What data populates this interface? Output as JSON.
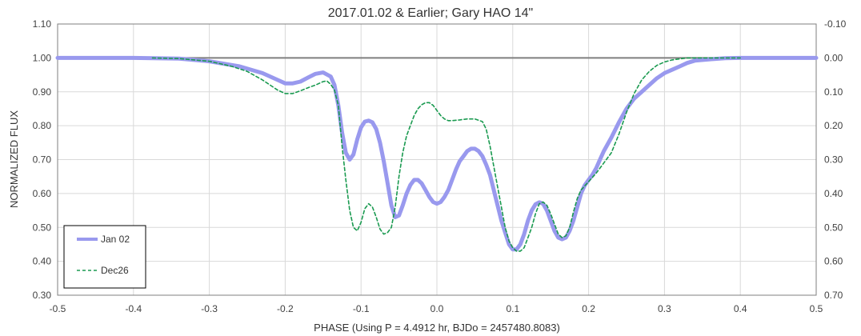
{
  "chart_data": {
    "type": "line",
    "title": "2017.01.02 & Earlier; Gary HAO 14\"",
    "xlabel": "PHASE (Using P = 4.4912 hr, BJDo = 2457480.8083)",
    "ylabel": "NORMALIZED FLUX",
    "xlim": [
      -0.5,
      0.5
    ],
    "ylim": [
      0.3,
      1.1
    ],
    "y2lim": [
      -0.1,
      0.7
    ],
    "y2_reversed": true,
    "x_ticks": [
      "-0.5",
      "-0.4",
      "-0.3",
      "-0.2",
      "-0.1",
      "0.0",
      "0.1",
      "0.2",
      "0.3",
      "0.4",
      "0.5"
    ],
    "y_ticks": [
      "0.30",
      "0.40",
      "0.50",
      "0.60",
      "0.70",
      "0.80",
      "0.90",
      "1.00",
      "1.10"
    ],
    "y2_ticks": [
      "0.70",
      "0.60",
      "0.50",
      "0.40",
      "0.30",
      "0.20",
      "0.10",
      "0.00",
      "-0.10"
    ],
    "reference_line_y": 1.0,
    "grid": true,
    "legend_position": "bottom-left",
    "series": [
      {
        "name": "Jan 02",
        "style": "solid-thick",
        "color": "#9999ee",
        "x": [
          -0.5,
          -0.4,
          -0.34,
          -0.3,
          -0.26,
          -0.23,
          -0.21,
          -0.2,
          -0.19,
          -0.18,
          -0.17,
          -0.16,
          -0.15,
          -0.14,
          -0.135,
          -0.13,
          -0.125,
          -0.12,
          -0.115,
          -0.11,
          -0.105,
          -0.1,
          -0.095,
          -0.09,
          -0.085,
          -0.08,
          -0.075,
          -0.07,
          -0.065,
          -0.06,
          -0.055,
          -0.05,
          -0.045,
          -0.04,
          -0.035,
          -0.03,
          -0.025,
          -0.02,
          -0.015,
          -0.01,
          -0.005,
          0.0,
          0.005,
          0.01,
          0.015,
          0.02,
          0.025,
          0.03,
          0.035,
          0.04,
          0.045,
          0.05,
          0.055,
          0.06,
          0.065,
          0.07,
          0.075,
          0.08,
          0.085,
          0.09,
          0.095,
          0.1,
          0.105,
          0.11,
          0.115,
          0.12,
          0.125,
          0.13,
          0.135,
          0.14,
          0.145,
          0.15,
          0.155,
          0.16,
          0.165,
          0.17,
          0.175,
          0.18,
          0.185,
          0.19,
          0.195,
          0.2,
          0.205,
          0.21,
          0.215,
          0.22,
          0.23,
          0.24,
          0.25,
          0.26,
          0.27,
          0.28,
          0.29,
          0.3,
          0.31,
          0.32,
          0.33,
          0.34,
          0.36,
          0.38,
          0.4,
          0.42,
          0.45,
          0.5
        ],
        "y": [
          1.0,
          1.0,
          0.998,
          0.99,
          0.975,
          0.955,
          0.935,
          0.925,
          0.925,
          0.93,
          0.942,
          0.953,
          0.957,
          0.945,
          0.92,
          0.86,
          0.78,
          0.72,
          0.7,
          0.715,
          0.76,
          0.795,
          0.812,
          0.815,
          0.81,
          0.79,
          0.75,
          0.695,
          0.63,
          0.565,
          0.53,
          0.535,
          0.565,
          0.6,
          0.625,
          0.64,
          0.64,
          0.63,
          0.61,
          0.59,
          0.575,
          0.57,
          0.575,
          0.59,
          0.61,
          0.64,
          0.67,
          0.695,
          0.71,
          0.725,
          0.732,
          0.732,
          0.725,
          0.71,
          0.685,
          0.655,
          0.61,
          0.565,
          0.52,
          0.485,
          0.45,
          0.435,
          0.435,
          0.45,
          0.48,
          0.52,
          0.55,
          0.568,
          0.574,
          0.57,
          0.55,
          0.52,
          0.49,
          0.47,
          0.465,
          0.47,
          0.49,
          0.52,
          0.56,
          0.6,
          0.625,
          0.64,
          0.655,
          0.675,
          0.7,
          0.725,
          0.765,
          0.81,
          0.85,
          0.88,
          0.9,
          0.92,
          0.94,
          0.955,
          0.965,
          0.975,
          0.985,
          0.992,
          0.996,
          0.999,
          1.0,
          1.0,
          1.0,
          1.0
        ]
      },
      {
        "name": "Dec26",
        "style": "dashed",
        "color": "#1a9a50",
        "x": [
          -0.375,
          -0.34,
          -0.3,
          -0.27,
          -0.25,
          -0.23,
          -0.21,
          -0.2,
          -0.19,
          -0.18,
          -0.17,
          -0.16,
          -0.15,
          -0.145,
          -0.14,
          -0.135,
          -0.13,
          -0.125,
          -0.12,
          -0.115,
          -0.11,
          -0.105,
          -0.1,
          -0.095,
          -0.09,
          -0.085,
          -0.08,
          -0.075,
          -0.07,
          -0.065,
          -0.06,
          -0.055,
          -0.05,
          -0.045,
          -0.04,
          -0.035,
          -0.03,
          -0.025,
          -0.02,
          -0.015,
          -0.01,
          -0.005,
          0.0,
          0.005,
          0.01,
          0.015,
          0.02,
          0.03,
          0.04,
          0.05,
          0.06,
          0.065,
          0.07,
          0.075,
          0.08,
          0.085,
          0.09,
          0.095,
          0.1,
          0.105,
          0.11,
          0.115,
          0.12,
          0.125,
          0.13,
          0.135,
          0.14,
          0.145,
          0.15,
          0.155,
          0.16,
          0.165,
          0.17,
          0.175,
          0.18,
          0.185,
          0.19,
          0.2,
          0.21,
          0.22,
          0.23,
          0.24,
          0.25,
          0.26,
          0.27,
          0.28,
          0.29,
          0.3,
          0.31,
          0.32,
          0.33,
          0.34,
          0.36,
          0.38,
          0.4
        ],
        "y": [
          1.0,
          0.998,
          0.99,
          0.975,
          0.96,
          0.935,
          0.905,
          0.895,
          0.895,
          0.903,
          0.912,
          0.92,
          0.93,
          0.932,
          0.922,
          0.905,
          0.86,
          0.74,
          0.64,
          0.55,
          0.5,
          0.49,
          0.515,
          0.555,
          0.57,
          0.56,
          0.53,
          0.495,
          0.48,
          0.485,
          0.5,
          0.56,
          0.65,
          0.72,
          0.77,
          0.8,
          0.83,
          0.85,
          0.862,
          0.868,
          0.868,
          0.86,
          0.845,
          0.83,
          0.82,
          0.815,
          0.815,
          0.817,
          0.82,
          0.82,
          0.812,
          0.79,
          0.74,
          0.68,
          0.62,
          0.56,
          0.5,
          0.46,
          0.44,
          0.43,
          0.43,
          0.44,
          0.47,
          0.5,
          0.54,
          0.57,
          0.575,
          0.565,
          0.54,
          0.51,
          0.48,
          0.47,
          0.475,
          0.5,
          0.545,
          0.585,
          0.61,
          0.635,
          0.66,
          0.69,
          0.72,
          0.775,
          0.84,
          0.895,
          0.935,
          0.96,
          0.978,
          0.988,
          0.994,
          0.997,
          1.0,
          1.0,
          1.0,
          1.0,
          1.0
        ]
      }
    ]
  }
}
